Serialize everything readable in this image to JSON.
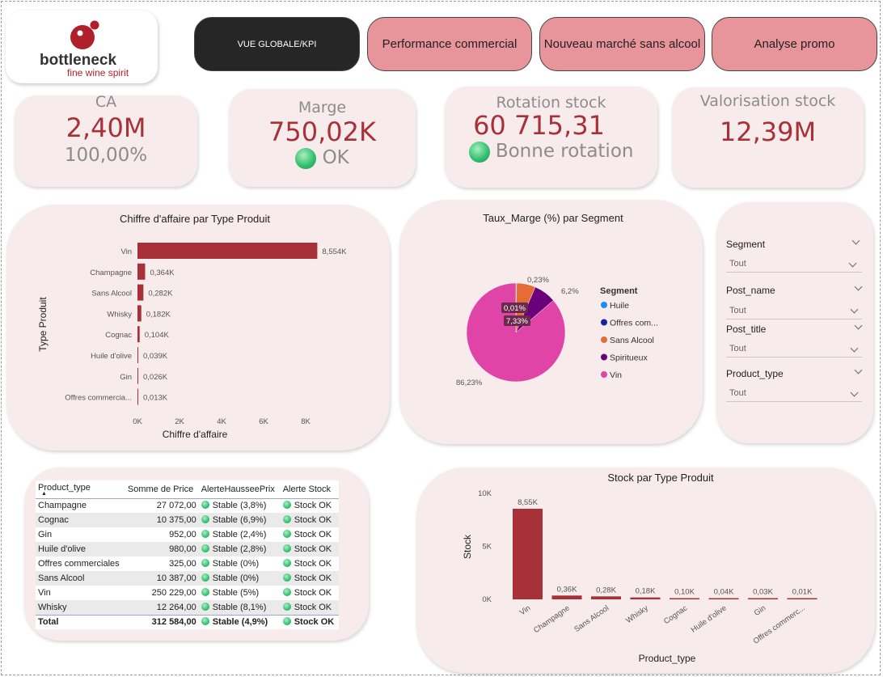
{
  "logo": {
    "brand": "bottleneck",
    "tagline": "fine wine spirit"
  },
  "nav": [
    {
      "label": "VUE GLOBALE/KPI",
      "active": true
    },
    {
      "label": "Performance commercial",
      "active": false
    },
    {
      "label": "Nouveau marché sans alcool",
      "active": false
    },
    {
      "label": "Analyse promo",
      "active": false
    }
  ],
  "kpis": {
    "ca": {
      "title": "CA",
      "value": "2,40M",
      "sub": "100,00%"
    },
    "marge": {
      "title": "Marge",
      "value": "750,02K",
      "status": "OK"
    },
    "rotation": {
      "title": "Rotation stock",
      "value": "60 715,31",
      "status": "Bonne rotation"
    },
    "valorisation": {
      "title": "Valorisation stock",
      "value": "12,39M"
    }
  },
  "colors": {
    "accent": "#a83139",
    "pink": "#e7949b",
    "panel": "#f7ebec",
    "status_green": "#35c172"
  },
  "slicers": [
    {
      "label": "Segment",
      "value": "Tout"
    },
    {
      "label": "Post_name",
      "value": "Tout"
    },
    {
      "label": "Post_title",
      "value": "Tout"
    },
    {
      "label": "Product_type",
      "value": "Tout"
    }
  ],
  "chart_data": [
    {
      "type": "bar",
      "orientation": "horizontal",
      "title": "Chiffre d'affaire par Type Produit",
      "xlabel": "Chiffre d'affaire",
      "ylabel": "Type Produit",
      "categories": [
        "Vin",
        "Champagne",
        "Sans Alcool",
        "Whisky",
        "Cognac",
        "Huile d'olive",
        "Gin",
        "Offres commercia..."
      ],
      "values": [
        8554,
        364,
        282,
        182,
        104,
        39,
        26,
        13
      ],
      "data_labels": [
        "8,554K",
        "0,364K",
        "0,282K",
        "0,182K",
        "0,104K",
        "0,039K",
        "0,026K",
        "0,013K"
      ],
      "xticks": [
        "0K",
        "2K",
        "4K",
        "6K",
        "8K"
      ],
      "xlim": [
        0,
        9000
      ],
      "color": "#a83139"
    },
    {
      "type": "pie",
      "title": "Taux_Marge (%) par Segment",
      "legend_title": "Segment",
      "legend_position": "right",
      "slices": [
        {
          "name": "Huile",
          "value": 0.01,
          "label": "0,01%",
          "color": "#1a8cff"
        },
        {
          "name": "Offres com...",
          "value": 0.23,
          "label": "0,23%",
          "color": "#12239e"
        },
        {
          "name": "Sans Alcool",
          "value": 6.2,
          "label": "6,2%",
          "color": "#e66c37"
        },
        {
          "name": "Spiritueux",
          "value": 7.33,
          "label": "7,33%",
          "color": "#6b007b"
        },
        {
          "name": "Vin",
          "value": 86.23,
          "label": "86,23%",
          "color": "#e044a7"
        }
      ]
    },
    {
      "type": "bar",
      "orientation": "vertical",
      "title": "Stock par Type Produit",
      "xlabel": "Product_type",
      "ylabel": "Stock",
      "categories": [
        "Vin",
        "Champagne",
        "Sans Alcool",
        "Whisky",
        "Cognac",
        "Huile d'olive",
        "Gin",
        "Offres commerc..."
      ],
      "values": [
        8550,
        360,
        280,
        180,
        100,
        40,
        30,
        10
      ],
      "data_labels": [
        "8,55K",
        "0,36K",
        "0,28K",
        "0,18K",
        "0,10K",
        "0,04K",
        "0,03K",
        "0,01K"
      ],
      "yticks": [
        "0K",
        "5K",
        "10K"
      ],
      "ylim": [
        0,
        10000
      ],
      "color": "#a83139"
    }
  ],
  "table": {
    "headers": [
      "Product_type",
      "Somme de Price",
      "AlerteHausseePrix",
      "Alerte Stock"
    ],
    "rows": [
      [
        "Champagne",
        "27 072,00",
        "Stable (3,8%)",
        "Stock OK"
      ],
      [
        "Cognac",
        "10 375,00",
        "Stable (6,9%)",
        "Stock OK"
      ],
      [
        "Gin",
        "952,00",
        "Stable (2,4%)",
        "Stock OK"
      ],
      [
        "Huile d'olive",
        "980,00",
        "Stable (2,8%)",
        "Stock OK"
      ],
      [
        "Offres commerciales",
        "325,00",
        "Stable (0%)",
        "Stock OK"
      ],
      [
        "Sans Alcool",
        "10 387,00",
        "Stable (0%)",
        "Stock OK"
      ],
      [
        "Vin",
        "250 229,00",
        "Stable (5%)",
        "Stock OK"
      ],
      [
        "Whisky",
        "12 264,00",
        "Stable (8,1%)",
        "Stock OK"
      ]
    ],
    "total": [
      "Total",
      "312 584,00",
      "Stable (4,9%)",
      "Stock OK"
    ]
  }
}
